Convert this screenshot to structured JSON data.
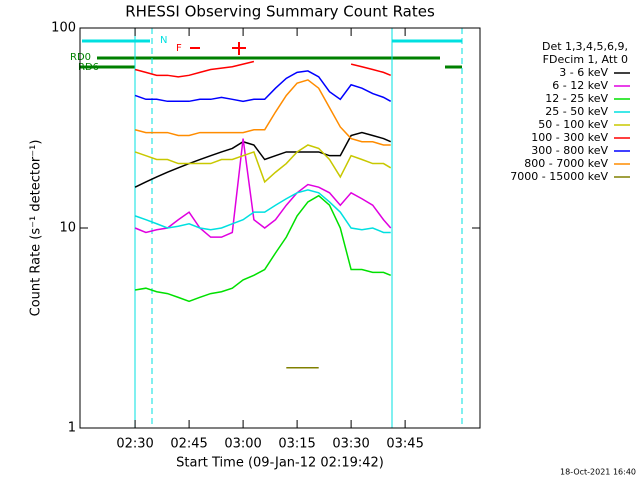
{
  "chart_data": {
    "type": "line",
    "title": "RHESSI Observing Summary Count Rates",
    "x_label": "Start Time (09-Jan-12 02:19:42)",
    "y_label": "Count Rate (s⁻¹ detector⁻¹)",
    "log_y": true,
    "xlim": [
      14.7,
      125.8
    ],
    "xticks": [
      {
        "value": 30,
        "label": "02:30"
      },
      {
        "value": 45,
        "label": "02:45"
      },
      {
        "value": 60,
        "label": "03:00"
      },
      {
        "value": 75,
        "label": "03:15"
      },
      {
        "value": 90,
        "label": "03:30"
      },
      {
        "value": 105,
        "label": "03:45"
      }
    ],
    "ylim": [
      1,
      100
    ],
    "yticks": [
      1,
      10,
      100
    ],
    "legend_title": [
      "Det 1,3,4,5,6,9,",
      "FDecim 1, Att 0"
    ],
    "legend_position": "right",
    "annotations": [
      "N",
      "F",
      "RD0",
      "RD6"
    ],
    "timestamp": "18-Oct-2021 16:40",
    "x": [
      30,
      33,
      36,
      39,
      42,
      45,
      48,
      51,
      54,
      57,
      60,
      63,
      66,
      69,
      72,
      75,
      78,
      81,
      84,
      87,
      90,
      93,
      96,
      99,
      101
    ],
    "series": [
      {
        "name": "3 - 6 keV",
        "color": "#000000",
        "values": [
          16,
          17,
          18,
          19,
          20,
          21,
          22,
          23,
          24,
          25,
          27,
          26,
          22,
          23,
          24,
          24,
          24,
          24,
          23,
          23,
          29,
          30,
          29,
          28,
          27
        ]
      },
      {
        "name": "6 - 12 keV",
        "color": "#e000e0",
        "values": [
          10,
          9.5,
          9.8,
          10,
          11,
          12,
          10,
          9,
          9,
          9.5,
          28,
          11,
          10,
          11,
          13,
          15,
          16.5,
          16,
          15,
          13,
          15,
          14,
          13,
          11,
          10
        ]
      },
      {
        "name": "12 - 25 keV",
        "color": "#00e000",
        "values": [
          4.9,
          5,
          4.8,
          4.7,
          4.5,
          4.3,
          4.5,
          4.7,
          4.8,
          5,
          5.5,
          5.8,
          6.2,
          7.5,
          9,
          11.5,
          13.5,
          14.5,
          13,
          10,
          6.2,
          6.2,
          6,
          6,
          5.8
        ]
      },
      {
        "name": "25 - 50 keV",
        "color": "#00e0e0",
        "values": [
          11.5,
          11,
          10.5,
          10,
          10.2,
          10.5,
          10,
          9.8,
          10,
          10.5,
          11,
          12,
          12,
          13,
          14,
          15,
          15.5,
          15,
          13.5,
          12,
          10,
          9.8,
          10,
          9.5,
          9.5
        ]
      },
      {
        "name": "50 - 100 keV",
        "color": "#c8c800",
        "values": [
          24,
          23,
          22,
          22,
          21,
          21,
          21,
          21,
          22,
          22,
          23,
          24,
          17,
          19,
          21,
          24,
          26,
          25,
          22,
          18,
          23,
          22,
          21,
          21,
          20
        ]
      },
      {
        "name": "100 - 300 keV",
        "color": "#ff0000",
        "values": [
          62,
          60,
          58,
          58,
          57,
          58,
          60,
          62,
          63,
          64,
          66,
          68,
          null,
          null,
          null,
          null,
          null,
          null,
          null,
          null,
          66,
          64,
          62,
          60,
          58
        ]
      },
      {
        "name": "300 - 800 keV",
        "color": "#0000ff",
        "values": [
          46,
          44,
          44,
          43,
          43,
          43,
          44,
          44,
          45,
          44,
          43,
          44,
          44,
          50,
          56,
          60,
          61,
          57,
          48,
          44,
          52,
          50,
          47,
          45,
          43
        ]
      },
      {
        "name": "800 - 7000 keV",
        "color": "#ff8c00",
        "values": [
          31,
          30,
          30,
          30,
          29,
          29,
          30,
          30,
          30,
          30,
          30,
          31,
          31,
          38,
          46,
          53,
          55,
          50,
          40,
          32,
          28,
          27,
          27,
          26,
          26
        ]
      },
      {
        "name": "7000 - 15000 keV",
        "color": "#808000",
        "values": [
          null,
          null,
          null,
          null,
          null,
          null,
          null,
          null,
          null,
          null,
          null,
          null,
          null,
          null,
          2,
          2,
          2,
          2,
          null,
          null,
          null,
          null,
          null,
          null,
          null
        ]
      }
    ]
  }
}
